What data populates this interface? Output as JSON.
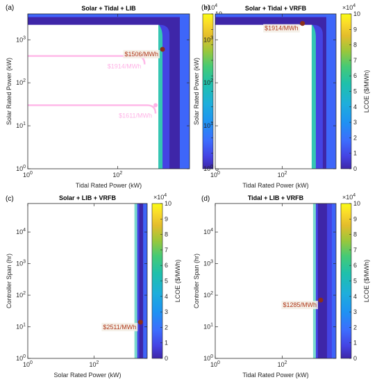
{
  "colorbar": {
    "label": "LCOE ($/MWh)",
    "multiplier": "×10",
    "exponent": "4",
    "ticks": [
      "0",
      "1",
      "2",
      "3",
      "4",
      "5",
      "6",
      "7",
      "8",
      "9",
      "10"
    ],
    "range": [
      0,
      100000
    ]
  },
  "chart_data": [
    {
      "type": "heatmap",
      "panel_label": "(a)",
      "title": "Solar + Tidal + LIB",
      "xlabel": "Tidal Rated Power (kW)",
      "ylabel": "Solar Rated Power (kW)",
      "x_scale": "log",
      "y_scale": "log",
      "xlim": [
        1,
        4000
      ],
      "ylim": [
        1,
        4000
      ],
      "x_ticks": [
        {
          "base": "10",
          "exp": "0"
        },
        {
          "base": "10",
          "exp": "2"
        }
      ],
      "y_ticks": [
        {
          "base": "10",
          "exp": "0"
        },
        {
          "base": "10",
          "exp": "1"
        },
        {
          "base": "10",
          "exp": "2"
        },
        {
          "base": "10",
          "exp": "3"
        }
      ],
      "feasible_region": "x >= 1000 or y >= 3000",
      "optimum": {
        "x": 1000,
        "y": 600,
        "label": "$1506/MWh",
        "lcoe": 1506
      },
      "faded_markers": [
        {
          "x": 400,
          "y": 420,
          "label": "$1914/MWh"
        },
        {
          "x": 700,
          "y": 30,
          "label": "$1611/MWh"
        }
      ]
    },
    {
      "type": "heatmap",
      "panel_label": "(b)",
      "title": "Solar + Tidal + VRFB",
      "xlabel": "Tidal Rated Power (kW)",
      "ylabel": "Solar Rated Power (kW)",
      "x_scale": "log",
      "y_scale": "log",
      "xlim": [
        1,
        4000
      ],
      "ylim": [
        1,
        4000
      ],
      "x_ticks": [
        {
          "base": "10",
          "exp": "0"
        },
        {
          "base": "10",
          "exp": "2"
        }
      ],
      "y_ticks": [
        {
          "base": "10",
          "exp": "0"
        },
        {
          "base": "10",
          "exp": "1"
        },
        {
          "base": "10",
          "exp": "2"
        },
        {
          "base": "10",
          "exp": "3"
        }
      ],
      "feasible_region": "x >= 1000 or y >= 3000",
      "optimum": {
        "x": 400,
        "y": 2400,
        "label": "$1914/MWh",
        "lcoe": 1914
      }
    },
    {
      "type": "heatmap",
      "panel_label": "(c)",
      "title": "Solar + LIB + VRFB",
      "xlabel": "Solar Rated Power (kW)",
      "ylabel": "Controller Span (hr)",
      "x_scale": "log",
      "y_scale": "log",
      "xlim": [
        1,
        4000
      ],
      "ylim": [
        1,
        80000
      ],
      "x_ticks": [
        {
          "base": "10",
          "exp": "0"
        },
        {
          "base": "10",
          "exp": "2"
        }
      ],
      "y_ticks": [
        {
          "base": "10",
          "exp": "0"
        },
        {
          "base": "10",
          "exp": "1"
        },
        {
          "base": "10",
          "exp": "2"
        },
        {
          "base": "10",
          "exp": "3"
        },
        {
          "base": "10",
          "exp": "4"
        }
      ],
      "feasible_region": "x >= 2000",
      "optimum": {
        "x": 2500,
        "y": 14,
        "label": "$2511/MWh",
        "lcoe": 2511
      }
    },
    {
      "type": "heatmap",
      "panel_label": "(d)",
      "title": "Tidal + LIB + VRFB",
      "xlabel": "Tidal Rated Power (kW)",
      "ylabel": "Controller Span (hr)",
      "x_scale": "log",
      "y_scale": "log",
      "xlim": [
        1,
        4000
      ],
      "ylim": [
        1,
        80000
      ],
      "x_ticks": [
        {
          "base": "10",
          "exp": "0"
        },
        {
          "base": "10",
          "exp": "2"
        }
      ],
      "y_ticks": [
        {
          "base": "10",
          "exp": "0"
        },
        {
          "base": "10",
          "exp": "1"
        },
        {
          "base": "10",
          "exp": "2"
        },
        {
          "base": "10",
          "exp": "3"
        },
        {
          "base": "10",
          "exp": "4"
        }
      ],
      "feasible_region": "x >= 1000",
      "optimum": {
        "x": 1400,
        "y": 70,
        "label": "$1285/MWh",
        "lcoe": 1285
      }
    }
  ]
}
